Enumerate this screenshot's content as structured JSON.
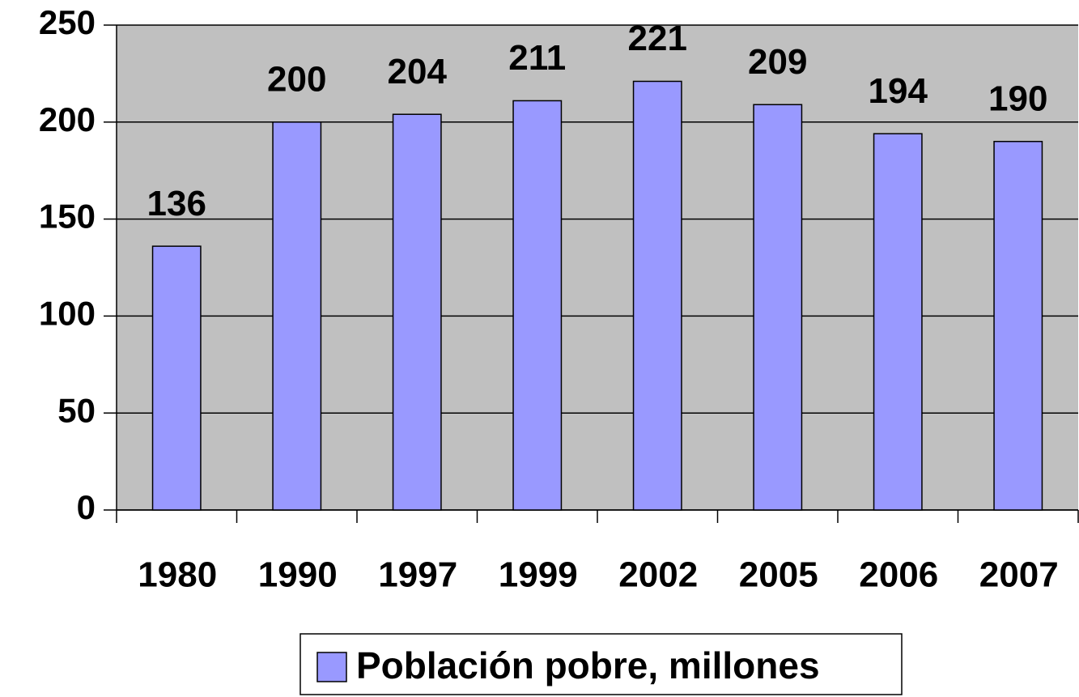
{
  "chart_data": {
    "type": "bar",
    "categories": [
      "1980",
      "1990",
      "1997",
      "1999",
      "2002",
      "2005",
      "2006",
      "2007"
    ],
    "series": [
      {
        "name": "Población pobre, millones",
        "color": "#9999ff",
        "values": [
          136,
          200,
          204,
          211,
          221,
          209,
          194,
          190
        ]
      }
    ],
    "ylim": [
      0,
      250
    ],
    "yticks": [
      0,
      50,
      100,
      150,
      200,
      250
    ],
    "grid": true,
    "plot_background": "#c0c0c0",
    "legend": "bottom"
  }
}
